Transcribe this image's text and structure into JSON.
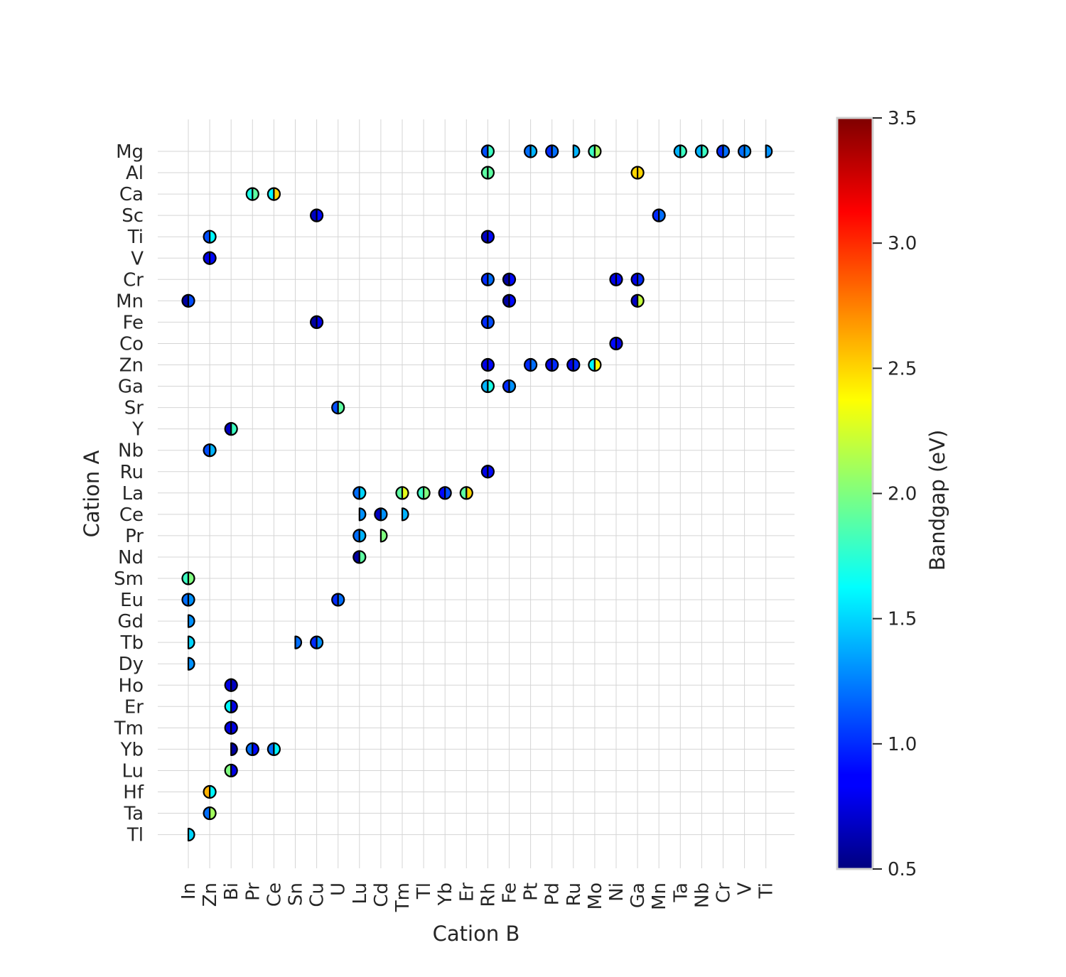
{
  "chart_data": {
    "type": "scatter",
    "title": "",
    "xlabel": "Cation B",
    "ylabel": "Cation A",
    "colorbar_label": "Bandgap (eV)",
    "colormap": "jet",
    "color_range": [
      0.5,
      3.5
    ],
    "colorbar_ticks": [
      "0.5",
      "1.0",
      "1.5",
      "2.0",
      "2.5",
      "3.0",
      "3.5"
    ],
    "grid": true,
    "marker_style": "circle split into left and right halves, each colored by a bandgap value; half circles where only one value is present",
    "x_categories": [
      "In",
      "Zn",
      "Bi",
      "Pr",
      "Ce",
      "Sn",
      "Cu",
      "U",
      "Lu",
      "Cd",
      "Tm",
      "Tl",
      "Yb",
      "Er",
      "Rh",
      "Fe",
      "Pt",
      "Pd",
      "Ru",
      "Mo",
      "Ni",
      "Ga",
      "Mn",
      "Ta",
      "Nb",
      "Cr",
      "V",
      "Ti"
    ],
    "y_categories": [
      "Mg",
      "Al",
      "Ca",
      "Sc",
      "Ti",
      "V",
      "Cr",
      "Mn",
      "Fe",
      "Co",
      "Zn",
      "Ga",
      "Sr",
      "Y",
      "Nb",
      "Ru",
      "La",
      "Ce",
      "Pr",
      "Nd",
      "Sm",
      "Eu",
      "Gd",
      "Tb",
      "Dy",
      "Ho",
      "Er",
      "Tm",
      "Yb",
      "Lu",
      "Hf",
      "Ta",
      "Tl"
    ],
    "points": [
      {
        "a": "Mg",
        "b": "Rh",
        "left": 1.1,
        "right": 1.8
      },
      {
        "a": "Mg",
        "b": "Pt",
        "left": 1.2,
        "right": 1.4
      },
      {
        "a": "Mg",
        "b": "Pd",
        "left": 1.0,
        "right": 1.2
      },
      {
        "a": "Mg",
        "b": "Ru",
        "left": null,
        "right": 1.4
      },
      {
        "a": "Mg",
        "b": "Mo",
        "left": 1.8,
        "right": 2.1
      },
      {
        "a": "Mg",
        "b": "Ta",
        "left": 1.4,
        "right": 1.8
      },
      {
        "a": "Mg",
        "b": "Nb",
        "left": 1.4,
        "right": 1.8
      },
      {
        "a": "Mg",
        "b": "Cr",
        "left": 1.0,
        "right": 1.2
      },
      {
        "a": "Mg",
        "b": "V",
        "left": 1.2,
        "right": 1.3
      },
      {
        "a": "Mg",
        "b": "Ti",
        "left": null,
        "right": 1.3
      },
      {
        "a": "Al",
        "b": "Rh",
        "left": 1.9,
        "right": 1.9
      },
      {
        "a": "Al",
        "b": "Ga",
        "left": 2.5,
        "right": 2.5
      },
      {
        "a": "Ca",
        "b": "Pr",
        "left": 1.7,
        "right": 1.9
      },
      {
        "a": "Ca",
        "b": "Ce",
        "left": 1.6,
        "right": 2.5
      },
      {
        "a": "Sc",
        "b": "Cu",
        "left": 0.7,
        "right": 0.9
      },
      {
        "a": "Sc",
        "b": "Mn",
        "left": 1.0,
        "right": 1.2
      },
      {
        "a": "Ti",
        "b": "Zn",
        "left": 1.1,
        "right": 1.6
      },
      {
        "a": "Ti",
        "b": "Rh",
        "left": 0.7,
        "right": 0.9
      },
      {
        "a": "V",
        "b": "Zn",
        "left": 0.8,
        "right": 0.9
      },
      {
        "a": "Cr",
        "b": "Rh",
        "left": 1.0,
        "right": 1.2
      },
      {
        "a": "Cr",
        "b": "Fe",
        "left": 0.6,
        "right": 0.9
      },
      {
        "a": "Cr",
        "b": "Ni",
        "left": 0.8,
        "right": 0.9
      },
      {
        "a": "Cr",
        "b": "Ga",
        "left": 0.8,
        "right": 1.0
      },
      {
        "a": "Mn",
        "b": "In",
        "left": 0.6,
        "right": 1.1
      },
      {
        "a": "Mn",
        "b": "Fe",
        "left": 0.6,
        "right": 0.9
      },
      {
        "a": "Mn",
        "b": "Ga",
        "left": 0.7,
        "right": 2.2
      },
      {
        "a": "Fe",
        "b": "Cu",
        "left": 0.6,
        "right": 0.8
      },
      {
        "a": "Fe",
        "b": "Rh",
        "left": 1.0,
        "right": 1.1
      },
      {
        "a": "Co",
        "b": "Ni",
        "left": 0.9,
        "right": 0.8
      },
      {
        "a": "Zn",
        "b": "Rh",
        "left": 0.8,
        "right": 0.9
      },
      {
        "a": "Zn",
        "b": "Pt",
        "left": 1.0,
        "right": 1.2
      },
      {
        "a": "Zn",
        "b": "Pd",
        "left": 0.8,
        "right": 1.0
      },
      {
        "a": "Zn",
        "b": "Ru",
        "left": 0.8,
        "right": 1.0
      },
      {
        "a": "Zn",
        "b": "Mo",
        "left": 1.6,
        "right": 2.4
      },
      {
        "a": "Ga",
        "b": "Rh",
        "left": 1.4,
        "right": 1.7
      },
      {
        "a": "Ga",
        "b": "Fe",
        "left": 1.0,
        "right": 1.3
      },
      {
        "a": "Sr",
        "b": "U",
        "left": 1.1,
        "right": 1.9
      },
      {
        "a": "Y",
        "b": "Bi",
        "left": 0.7,
        "right": 1.8
      },
      {
        "a": "Nb",
        "b": "Zn",
        "left": 1.1,
        "right": 1.4
      },
      {
        "a": "Ru",
        "b": "Rh",
        "left": 0.8,
        "right": 0.9
      },
      {
        "a": "La",
        "b": "Lu",
        "left": 1.2,
        "right": 1.5
      },
      {
        "a": "La",
        "b": "Tm",
        "left": 1.9,
        "right": 2.3
      },
      {
        "a": "La",
        "b": "Tl",
        "left": 1.8,
        "right": 2.0
      },
      {
        "a": "La",
        "b": "Yb",
        "left": 0.9,
        "right": 1.1
      },
      {
        "a": "La",
        "b": "Er",
        "left": 1.9,
        "right": 2.5
      },
      {
        "a": "Ce",
        "b": "Lu",
        "left": null,
        "right": 1.3
      },
      {
        "a": "Ce",
        "b": "Cd",
        "left": 0.7,
        "right": 1.3
      },
      {
        "a": "Ce",
        "b": "Tm",
        "left": null,
        "right": 1.4
      },
      {
        "a": "Pr",
        "b": "Lu",
        "left": 1.2,
        "right": 1.4
      },
      {
        "a": "Pr",
        "b": "Cd",
        "left": null,
        "right": 2.0
      },
      {
        "a": "Nd",
        "b": "Lu",
        "left": 0.6,
        "right": 1.9
      },
      {
        "a": "Sm",
        "b": "In",
        "left": 1.8,
        "right": 2.0
      },
      {
        "a": "Eu",
        "b": "In",
        "left": 1.2,
        "right": 1.3
      },
      {
        "a": "Eu",
        "b": "U",
        "left": 1.0,
        "right": 1.2
      },
      {
        "a": "Gd",
        "b": "In",
        "left": null,
        "right": 1.3
      },
      {
        "a": "Tb",
        "b": "In",
        "left": null,
        "right": 1.5
      },
      {
        "a": "Tb",
        "b": "Sn",
        "left": null,
        "right": 1.2
      },
      {
        "a": "Tb",
        "b": "Cu",
        "left": 1.0,
        "right": 1.3
      },
      {
        "a": "Dy",
        "b": "In",
        "left": null,
        "right": 1.3
      },
      {
        "a": "Ho",
        "b": "Bi",
        "left": 0.8,
        "right": 0.7
      },
      {
        "a": "Er",
        "b": "Bi",
        "left": 1.6,
        "right": 0.8
      },
      {
        "a": "Tm",
        "b": "Bi",
        "left": 0.8,
        "right": 0.8
      },
      {
        "a": "Yb",
        "b": "Bi",
        "left": null,
        "right": 0.6
      },
      {
        "a": "Yb",
        "b": "Pr",
        "left": 1.2,
        "right": 0.9
      },
      {
        "a": "Yb",
        "b": "Ce",
        "left": 1.2,
        "right": 1.6
      },
      {
        "a": "Lu",
        "b": "Bi",
        "left": 2.0,
        "right": 0.8
      },
      {
        "a": "Hf",
        "b": "Zn",
        "left": 2.6,
        "right": 1.6
      },
      {
        "a": "Ta",
        "b": "Zn",
        "left": 1.2,
        "right": 2.1
      },
      {
        "a": "Tl",
        "b": "In",
        "left": null,
        "right": 1.5
      }
    ]
  }
}
